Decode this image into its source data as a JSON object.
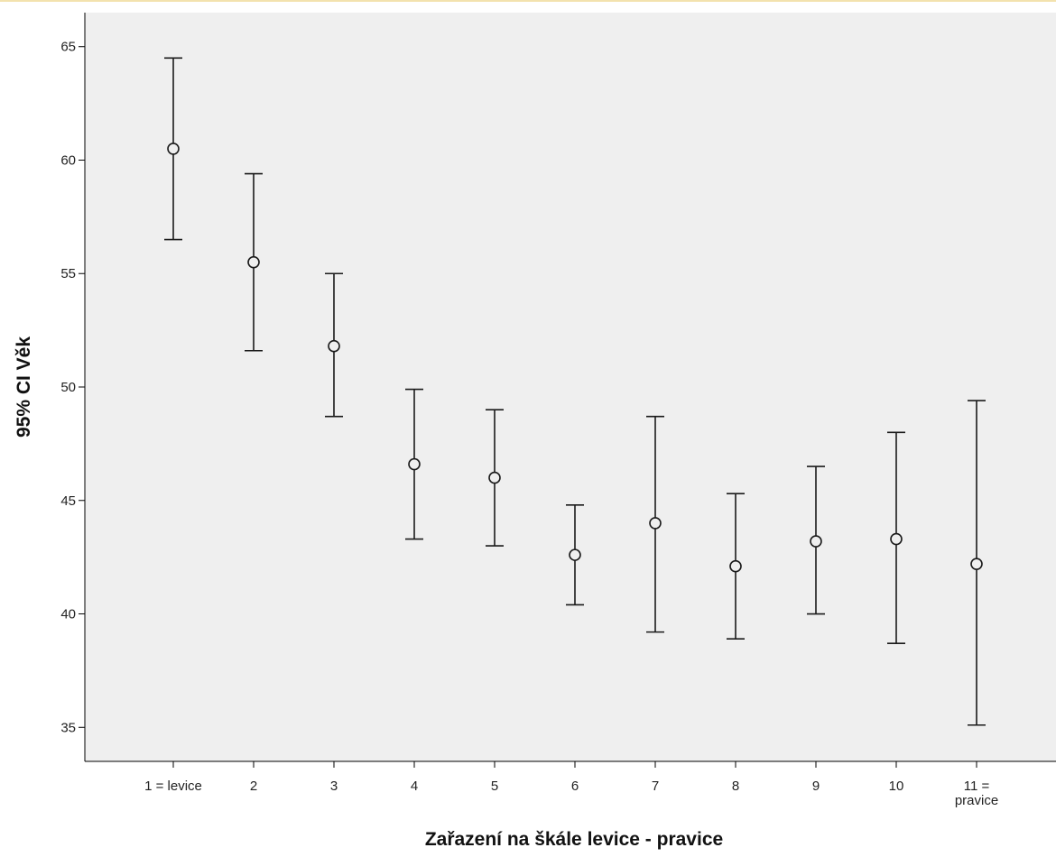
{
  "chart_data": {
    "type": "errorbar",
    "title": "",
    "xlabel": "Zařazení na škále levice - pravice",
    "ylabel": "95% CI Věk",
    "ylim": [
      33.5,
      66.5
    ],
    "yticks": [
      35,
      40,
      45,
      50,
      55,
      60,
      65
    ],
    "grid": false,
    "colors": {
      "plot_background": "#efefef",
      "marks": "#1a1a1a"
    },
    "categories": [
      [
        "1 = levice"
      ],
      [
        "2"
      ],
      [
        "3"
      ],
      [
        "4"
      ],
      [
        "5"
      ],
      [
        "6"
      ],
      [
        "7"
      ],
      [
        "8"
      ],
      [
        "9"
      ],
      [
        "10"
      ],
      [
        "11 =",
        "pravice"
      ]
    ],
    "mean": [
      60.5,
      55.5,
      51.8,
      46.6,
      46.0,
      42.6,
      44.0,
      42.1,
      43.2,
      43.3,
      42.2
    ],
    "lower": [
      56.5,
      51.6,
      48.7,
      43.3,
      43.0,
      40.4,
      39.2,
      38.9,
      40.0,
      38.7,
      35.1
    ],
    "upper": [
      64.5,
      59.4,
      55.0,
      49.9,
      49.0,
      44.8,
      48.7,
      45.3,
      46.5,
      48.0,
      49.4
    ]
  }
}
